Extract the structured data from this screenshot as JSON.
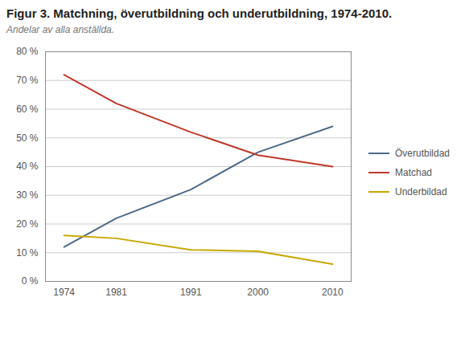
{
  "chart_data": {
    "type": "line",
    "title": "Figur 3. Matchning, överutbildning och underutbildning, 1974-2010.",
    "subtitle": "Andelar av alla anställda.",
    "x": [
      1974,
      1981,
      1991,
      2000,
      2010
    ],
    "series": [
      {
        "name": "Överutbildad",
        "color": "#4d6b8a",
        "values": [
          12,
          22,
          32,
          45,
          54
        ]
      },
      {
        "name": "Matchad",
        "color": "#c0392b",
        "values": [
          72,
          62,
          52,
          44,
          40
        ]
      },
      {
        "name": "Underbildad",
        "color": "#c8a800",
        "values": [
          16,
          15,
          11,
          10.5,
          6
        ]
      }
    ],
    "xlim": [
      1971.5,
      2012.5
    ],
    "xticks": [
      1974,
      1981,
      1991,
      2000,
      2010
    ],
    "ylim": [
      0,
      80
    ],
    "yticks": [
      {
        "value": 0,
        "label": "0 %"
      },
      {
        "value": 10,
        "label": "10 %"
      },
      {
        "value": 20,
        "label": "20 %"
      },
      {
        "value": 30,
        "label": "30 %"
      },
      {
        "value": 40,
        "label": "40 %"
      },
      {
        "value": 50,
        "label": "50 %"
      },
      {
        "value": 60,
        "label": "60 %"
      },
      {
        "value": 70,
        "label": "70 %"
      },
      {
        "value": 80,
        "label": "80 %"
      }
    ],
    "grid": true,
    "legend": "right"
  }
}
